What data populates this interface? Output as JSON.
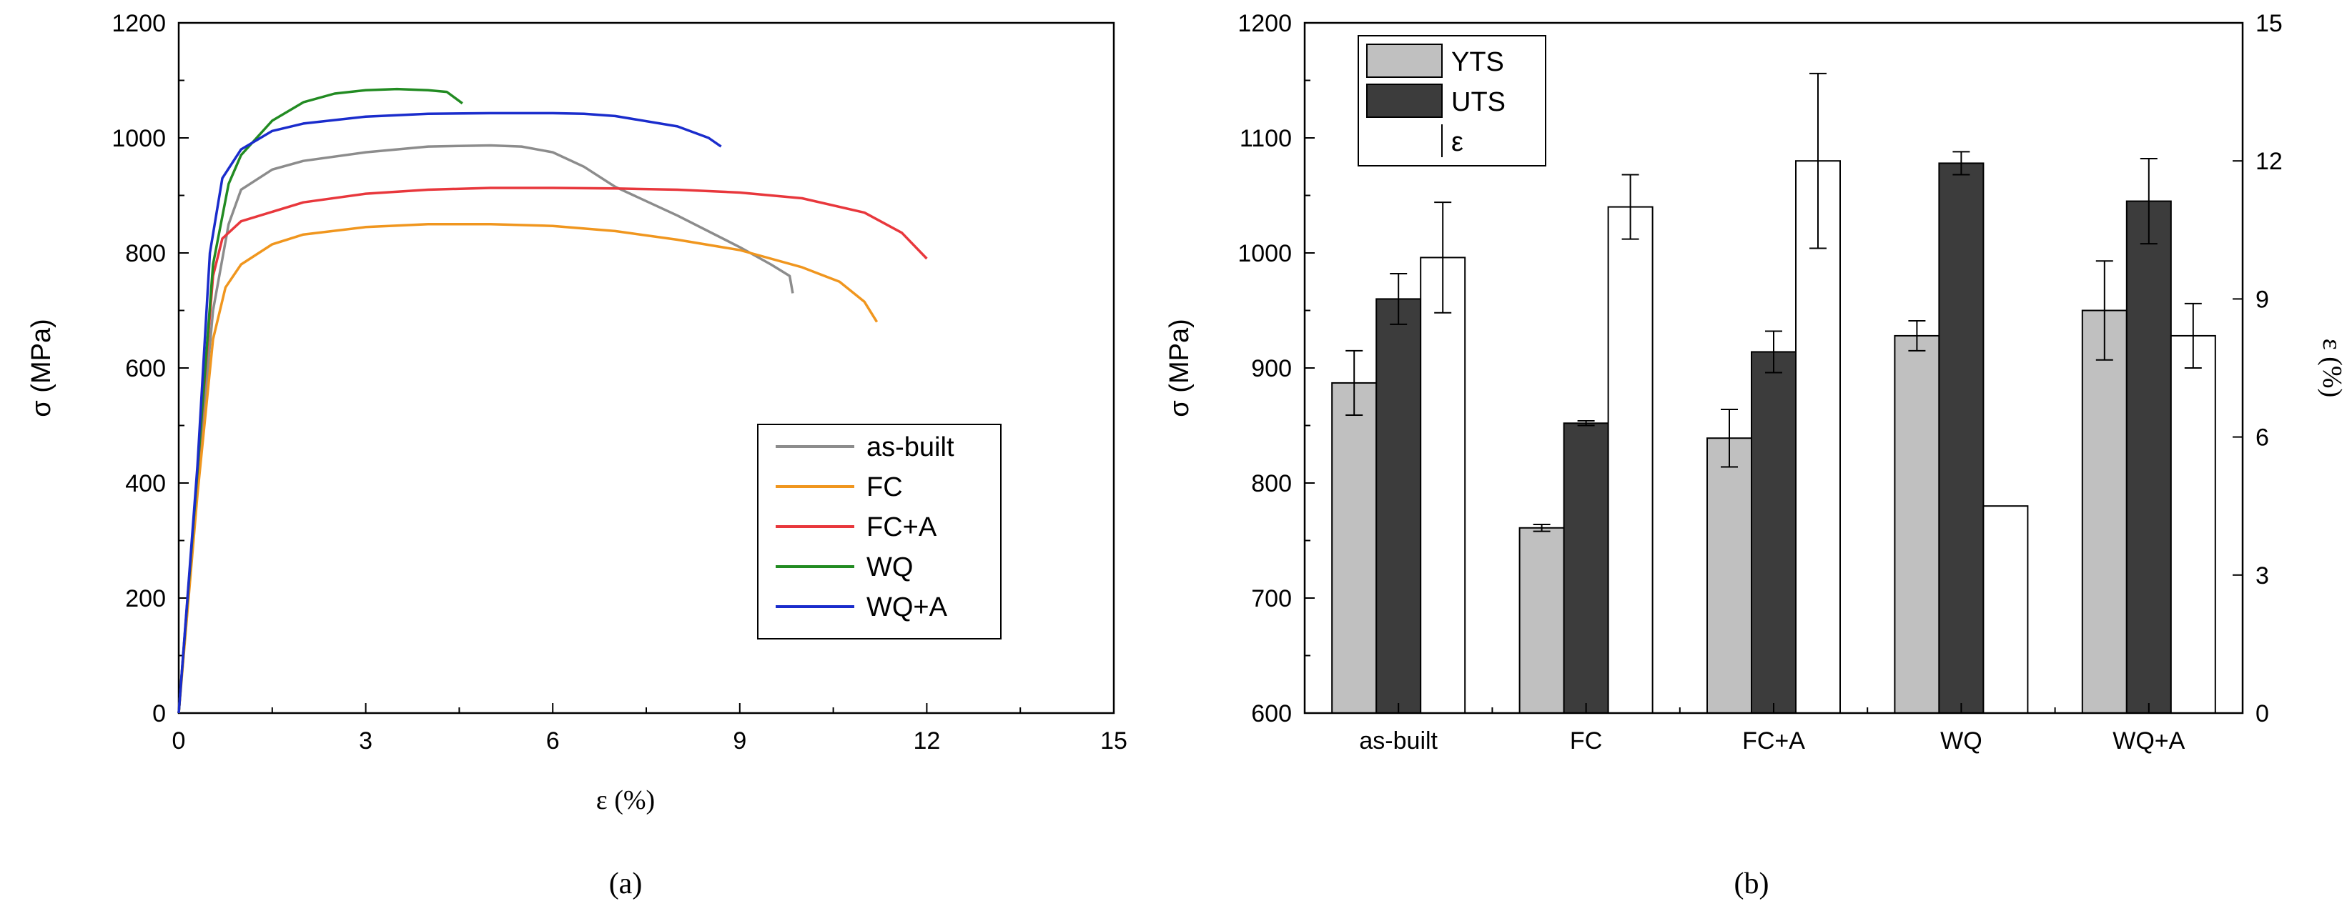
{
  "chart_data": [
    {
      "type": "line",
      "caption": "(a)",
      "title": "",
      "xlabel": "ε (%)",
      "ylabel": "σ (MPa)",
      "xlim": [
        0,
        15
      ],
      "ylim": [
        0,
        1200
      ],
      "xticks": [
        0,
        3,
        6,
        9,
        12,
        15
      ],
      "xtick_labels": [
        "0",
        "3",
        "6",
        "9",
        "12",
        "15"
      ],
      "yticks": [
        0,
        200,
        400,
        600,
        800,
        1000,
        1200
      ],
      "ytick_labels": [
        "0",
        "200",
        "400",
        "600",
        "800",
        "1000",
        "1200"
      ],
      "legend_position": "lower-right",
      "series": [
        {
          "name": "as-built",
          "color": "#8c8c8c",
          "points": [
            [
              0,
              0
            ],
            [
              0.3,
              400
            ],
            [
              0.55,
              700
            ],
            [
              0.8,
              850
            ],
            [
              1.0,
              910
            ],
            [
              1.5,
              945
            ],
            [
              2,
              960
            ],
            [
              3,
              975
            ],
            [
              4,
              985
            ],
            [
              5,
              987
            ],
            [
              5.5,
              985
            ],
            [
              6,
              975
            ],
            [
              6.5,
              950
            ],
            [
              7,
              915
            ],
            [
              8,
              865
            ],
            [
              9,
              810
            ],
            [
              9.5,
              780
            ],
            [
              9.8,
              760
            ],
            [
              9.85,
              730
            ]
          ]
        },
        {
          "name": "FC",
          "color": "#f0961e",
          "points": [
            [
              0,
              0
            ],
            [
              0.3,
              380
            ],
            [
              0.55,
              650
            ],
            [
              0.75,
              740
            ],
            [
              1,
              780
            ],
            [
              1.5,
              815
            ],
            [
              2,
              832
            ],
            [
              3,
              845
            ],
            [
              4,
              850
            ],
            [
              5,
              850
            ],
            [
              6,
              847
            ],
            [
              7,
              838
            ],
            [
              8,
              823
            ],
            [
              9,
              805
            ],
            [
              10,
              775
            ],
            [
              10.6,
              750
            ],
            [
              11,
              715
            ],
            [
              11.2,
              680
            ]
          ]
        },
        {
          "name": "FC+A",
          "color": "#e8373c",
          "points": [
            [
              0,
              0
            ],
            [
              0.3,
              420
            ],
            [
              0.55,
              760
            ],
            [
              0.7,
              825
            ],
            [
              1,
              855
            ],
            [
              2,
              888
            ],
            [
              3,
              903
            ],
            [
              4,
              910
            ],
            [
              5,
              913
            ],
            [
              6,
              913
            ],
            [
              7,
              912
            ],
            [
              8,
              910
            ],
            [
              9,
              905
            ],
            [
              10,
              895
            ],
            [
              11,
              870
            ],
            [
              11.6,
              835
            ],
            [
              12,
              790
            ]
          ]
        },
        {
          "name": "WQ",
          "color": "#228b22",
          "points": [
            [
              0,
              0
            ],
            [
              0.3,
              420
            ],
            [
              0.55,
              780
            ],
            [
              0.8,
              920
            ],
            [
              1.0,
              970
            ],
            [
              1.5,
              1030
            ],
            [
              2,
              1062
            ],
            [
              2.5,
              1077
            ],
            [
              3,
              1083
            ],
            [
              3.5,
              1085
            ],
            [
              4,
              1083
            ],
            [
              4.3,
              1080
            ],
            [
              4.55,
              1060
            ]
          ]
        },
        {
          "name": "WQ+A",
          "color": "#1a2ccc",
          "points": [
            [
              0,
              0
            ],
            [
              0.3,
              430
            ],
            [
              0.5,
              800
            ],
            [
              0.7,
              930
            ],
            [
              1,
              980
            ],
            [
              1.5,
              1012
            ],
            [
              2,
              1025
            ],
            [
              3,
              1037
            ],
            [
              4,
              1042
            ],
            [
              5,
              1043
            ],
            [
              6,
              1043
            ],
            [
              6.5,
              1042
            ],
            [
              7,
              1038
            ],
            [
              8,
              1020
            ],
            [
              8.5,
              1000
            ],
            [
              8.7,
              985
            ]
          ]
        }
      ]
    },
    {
      "type": "bar",
      "caption": "(b)",
      "title": "",
      "xlabel": "",
      "ylabel": "σ (MPa)",
      "y2label": "ε (%)",
      "categories": [
        "as-built",
        "FC",
        "FC+A",
        "WQ",
        "WQ+A"
      ],
      "ylim": [
        600,
        1200
      ],
      "y2lim": [
        0,
        15
      ],
      "yticks": [
        600,
        700,
        800,
        900,
        1000,
        1100,
        1200
      ],
      "ytick_labels": [
        "600",
        "700",
        "800",
        "900",
        "1000",
        "1100",
        "1200"
      ],
      "y2ticks": [
        0,
        3,
        6,
        9,
        12,
        15
      ],
      "y2tick_labels": [
        "0",
        "3",
        "6",
        "9",
        "12",
        "15"
      ],
      "legend_position": "top-left",
      "series": [
        {
          "name": "YTS",
          "axis": "left",
          "color": "#c0c0c0",
          "values": [
            887,
            761,
            839,
            928,
            950
          ],
          "errors": [
            28,
            3,
            25,
            13,
            43
          ]
        },
        {
          "name": "UTS",
          "axis": "left",
          "color": "#3c3c3c",
          "values": [
            960,
            852,
            914,
            1078,
            1045
          ],
          "errors": [
            22,
            2,
            18,
            10,
            37
          ]
        },
        {
          "name": "ε",
          "axis": "right",
          "color": "#ffffff",
          "values": [
            9.9,
            11.0,
            12.0,
            4.5,
            8.2
          ],
          "errors": [
            1.2,
            0.7,
            1.9,
            0,
            0.7
          ]
        }
      ]
    }
  ]
}
